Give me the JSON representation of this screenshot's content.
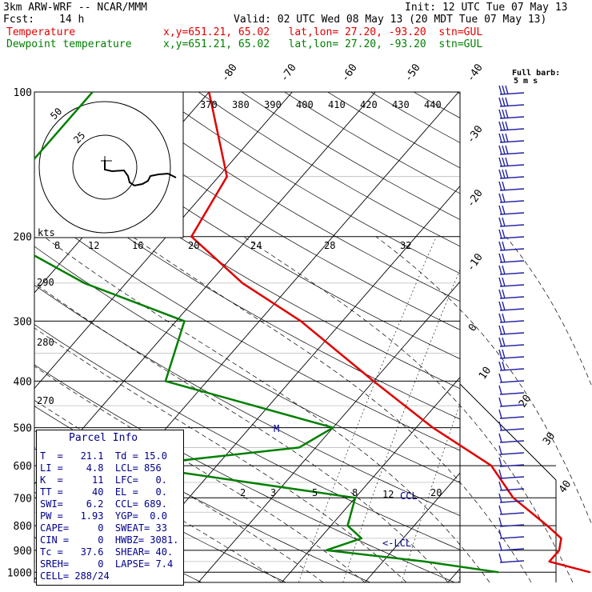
{
  "header": {
    "model": "3km ARW-WRF -- NCAR/MMM",
    "init": "Init: 12 UTC Tue 07 May 13",
    "fcst_label": "Fcst:",
    "fcst_value": "14 h",
    "valid": "Valid: 02 UTC Wed 08 May 13 (20 MDT Tue 07 May 13)",
    "temp_label": "Temperature",
    "temp_info": "x,y=651.21, 65.02   lat,lon= 27.20, -93.20  stn=GUL",
    "dew_label": "Dewpoint temperature",
    "dew_info": "x,y=651.21, 65.02   lat,lon= 27.20, -93.20  stn=GUL"
  },
  "colors": {
    "temperature": "#e00000",
    "dewpoint": "#008000",
    "parcel": "#00008b",
    "barbs": "#1e1ea0"
  },
  "chart_data": {
    "type": "line",
    "subtype": "skew-t log-p sounding",
    "pressure_levels": [
      "100",
      "200",
      "300",
      "400",
      "500",
      "600",
      "700",
      "800",
      "900",
      "1000"
    ],
    "isotherm_labels": [
      "-80",
      "-70",
      "-60",
      "-50",
      "-40",
      "-30",
      "-20",
      "-10",
      "0",
      "10",
      "20",
      "30",
      "40"
    ],
    "theta_labels": [
      "370",
      "380",
      "390",
      "400",
      "410",
      "420",
      "430",
      "440"
    ],
    "dry_adiabat_labels": [
      "290",
      "280",
      "270"
    ],
    "mixing_ratio_upper": [
      "8",
      "12",
      "16",
      "20",
      "24",
      "28",
      "32"
    ],
    "mixing_ratio_lower": [
      "2",
      "3",
      "5",
      "8",
      "12",
      "20"
    ],
    "hodograph": {
      "units": "kts",
      "rings": [
        "25",
        "50"
      ]
    },
    "annotations": {
      "ccl": "CCL",
      "lcl": "<-LCL",
      "m": "M"
    },
    "barb_key": {
      "line1": "Full barb:",
      "line2": "5 m s"
    },
    "series": [
      {
        "name": "Temperature",
        "values": [
          {
            "p": 100,
            "t": -70
          },
          {
            "p": 150,
            "t": -59
          },
          {
            "p": 200,
            "t": -57
          },
          {
            "p": 250,
            "t": -46
          },
          {
            "p": 300,
            "t": -35
          },
          {
            "p": 400,
            "t": -20
          },
          {
            "p": 500,
            "t": -8
          },
          {
            "p": 600,
            "t": 3
          },
          {
            "p": 700,
            "t": 9
          },
          {
            "p": 800,
            "t": 16
          },
          {
            "p": 850,
            "t": 19
          },
          {
            "p": 900,
            "t": 20
          },
          {
            "p": 950,
            "t": 20
          },
          {
            "p": 1000,
            "t": 26
          }
        ]
      },
      {
        "name": "Dewpoint temperature",
        "values": [
          {
            "p": 100,
            "t": -84
          },
          {
            "p": 150,
            "t": -84
          },
          {
            "p": 200,
            "t": -80
          },
          {
            "p": 250,
            "t": -65
          },
          {
            "p": 300,
            "t": -49
          },
          {
            "p": 400,
            "t": -45
          },
          {
            "p": 500,
            "t": -20
          },
          {
            "p": 550,
            "t": -22
          },
          {
            "p": 600,
            "t": -40
          },
          {
            "p": 700,
            "t": -10
          },
          {
            "p": 800,
            "t": -8
          },
          {
            "p": 850,
            "t": -5
          },
          {
            "p": 900,
            "t": -8
          },
          {
            "p": 950,
            "t": 5
          },
          {
            "p": 1000,
            "t": 15
          }
        ]
      }
    ]
  },
  "parcel_info": {
    "title": "Parcel Info",
    "rows": [
      "T  =   21.1  Td = 15.0",
      "LI =    4.8  LCL= 856",
      "K  =     11  LFC=   0.",
      "TT =     40  EL =   0.",
      "SWI=    6.2  CCL= 689.",
      "PW =   1.93  YGP=  0.0",
      "CAPE=     0  SWEAT= 33",
      "CIN =     0  HWBZ= 3081.",
      "Tc =   37.6  SHEAR= 40.",
      "SREH=     0  LAPSE= 7.4",
      "CELL= 288/24"
    ]
  }
}
